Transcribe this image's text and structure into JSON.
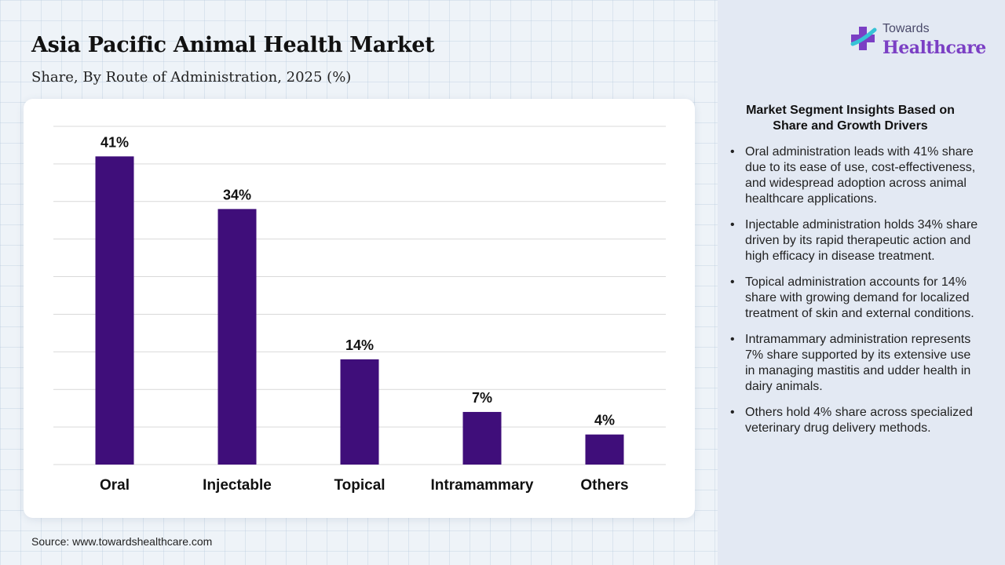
{
  "header": {
    "title": "Asia Pacific Animal Health Market",
    "subtitle": "Share, By Route of Administration, 2025 (%)"
  },
  "logo": {
    "top_text": "Towards",
    "main_text": "Healthcare"
  },
  "source": "Source: www.towardshealthcare.com",
  "insights": {
    "title": "Market Segment Insights Based on Share and Growth Drivers",
    "items": [
      "Oral administration leads with 41% share due to its ease of use, cost-effectiveness, and widespread adoption across animal healthcare applications.",
      "Injectable administration holds 34% share driven by its rapid therapeutic action and high efficacy in disease treatment.",
      "Topical administration accounts for 14% share with growing demand for localized treatment of skin and external conditions.",
      "Intramammary administration represents 7% share supported by its extensive use in managing mastitis and udder health in dairy animals.",
      "Others hold 4% share across specialized veterinary drug delivery methods."
    ]
  },
  "colors": {
    "bar": "#3f0e7a",
    "grid": "#d9d9d9",
    "logo_accent": "#7b3fc4"
  },
  "chart_data": {
    "type": "bar",
    "categories": [
      "Oral",
      "Injectable",
      "Topical",
      "Intramammary",
      "Others"
    ],
    "values": [
      41,
      34,
      14,
      7,
      4
    ],
    "value_labels": [
      "41%",
      "34%",
      "14%",
      "7%",
      "4%"
    ],
    "ylim": [
      0,
      45
    ],
    "grid": true,
    "legend": "none"
  }
}
